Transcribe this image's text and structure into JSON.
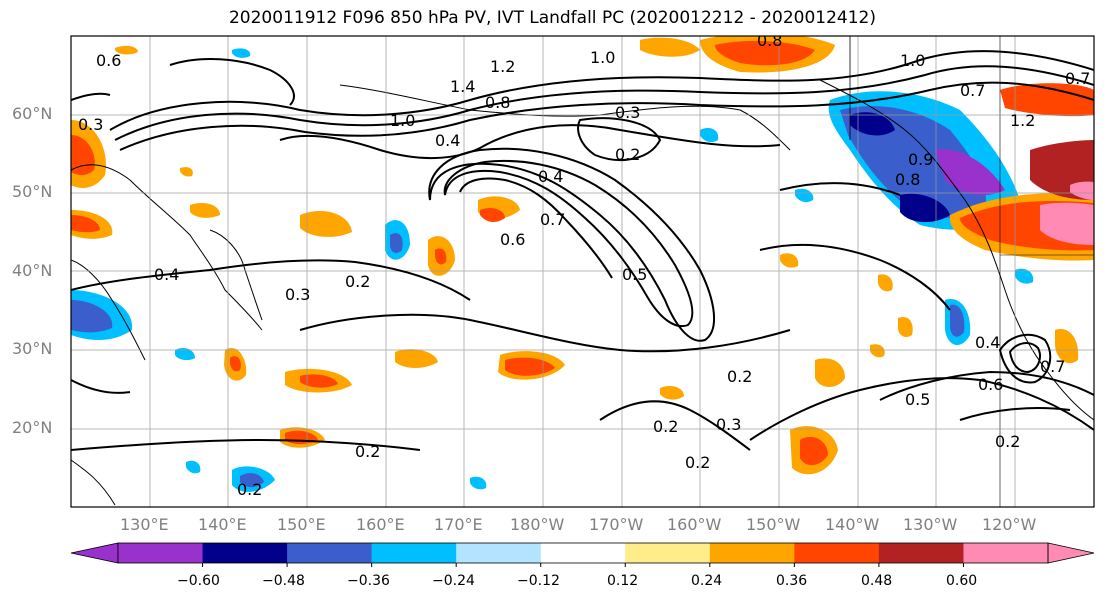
{
  "title": "2020011912 F096 850 hPa PV, IVT Landfall PC (2020012212 - 2020012412)",
  "lat_labels": [
    "60°N",
    "50°N",
    "40°N",
    "30°N",
    "20°N"
  ],
  "lon_labels": [
    "130°E",
    "140°E",
    "150°E",
    "160°E",
    "170°E",
    "180°W",
    "170°W",
    "160°W",
    "150°W",
    "140°W",
    "130°W",
    "120°W"
  ],
  "colorbar": {
    "ticks": [
      "−0.60",
      "−0.48",
      "−0.36",
      "−0.24",
      "−0.12",
      "0.12",
      "0.24",
      "0.36",
      "0.48",
      "0.60"
    ],
    "colors": [
      "#9932cc",
      "#00008b",
      "#3a5fcd",
      "#00bfff",
      "#b2e3ff",
      "#ffffff",
      "#ffec8b",
      "#ffa500",
      "#ff4500",
      "#b22222",
      "#ff8ab3"
    ]
  },
  "contour_labels": [
    "0.6",
    "1.0",
    "0.8",
    "1.0",
    "1.2",
    "1.4",
    "0.8",
    "1.0",
    "0.4",
    "0.3",
    "0.2",
    "0.4",
    "0.6",
    "0.7",
    "0.5",
    "0.4",
    "0.3",
    "0.2",
    "0.2",
    "0.2",
    "0.2",
    "0.3",
    "0.2",
    "0.5",
    "0.6",
    "0.7",
    "0.2",
    "0.4",
    "0.8",
    "0.7",
    "1.2",
    "0.3",
    "0.9",
    "0.7",
    "0.2"
  ]
}
